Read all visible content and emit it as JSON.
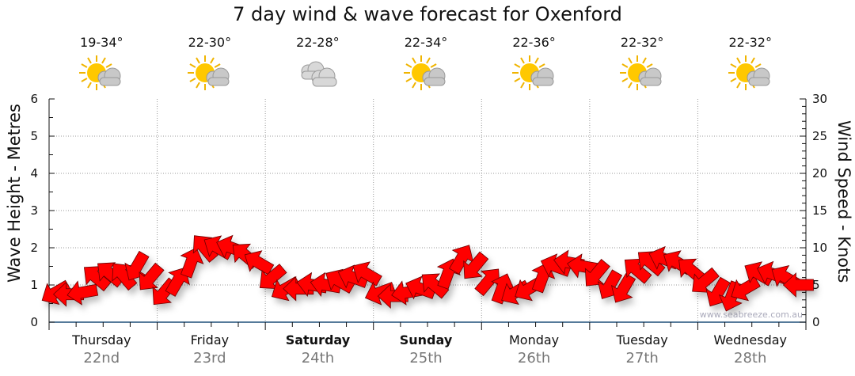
{
  "chart_data": {
    "type": "scatter",
    "title": "7 day wind & wave forecast for Oxenford",
    "ylabel": "Wave Height - Metres",
    "y2label": "Wind Speed - Knots",
    "ylim": [
      0,
      6
    ],
    "y2lim": [
      0,
      30
    ],
    "yticks": [
      "0",
      "1",
      "2",
      "3",
      "4",
      "5",
      "6"
    ],
    "y2ticks": [
      "0",
      "5",
      "10",
      "15",
      "20",
      "25",
      "30"
    ],
    "watermark": "www.seabreeze.com.au",
    "days": [
      {
        "name": "Thursday",
        "date": "22nd",
        "temp": "19-34°",
        "icon": "sun-cloud",
        "bold": false
      },
      {
        "name": "Friday",
        "date": "23rd",
        "temp": "22-30°",
        "icon": "sun-cloud",
        "bold": false
      },
      {
        "name": "Saturday",
        "date": "24th",
        "temp": "22-28°",
        "icon": "cloud",
        "bold": true
      },
      {
        "name": "Sunday",
        "date": "25th",
        "temp": "22-34°",
        "icon": "sun-cloud",
        "bold": true
      },
      {
        "name": "Monday",
        "date": "26th",
        "temp": "22-36°",
        "icon": "sun-cloud",
        "bold": false
      },
      {
        "name": "Tuesday",
        "date": "27th",
        "temp": "22-32°",
        "icon": "sun-cloud",
        "bold": false
      },
      {
        "name": "Wednesday",
        "date": "28th",
        "temp": "22-32°",
        "icon": "sun-cloud",
        "bold": false
      }
    ],
    "wave_height_m": [
      0.8,
      0.75,
      0.8,
      1.2,
      1.3,
      1.25,
      1.5,
      1.2,
      0.8,
      1.1,
      1.6,
      2.0,
      2.0,
      2.0,
      1.8,
      1.6,
      1.2,
      0.9,
      0.9,
      1.0,
      1.0,
      1.1,
      1.2,
      1.3,
      0.8,
      0.7,
      0.8,
      0.9,
      1.0,
      1.3,
      1.7,
      1.5,
      1.1,
      0.9,
      0.8,
      0.9,
      1.2,
      1.5,
      1.6,
      1.5,
      1.3,
      1.0,
      0.9,
      1.4,
      1.6,
      1.7,
      1.6,
      1.4,
      1.1,
      0.8,
      0.7,
      0.9,
      1.3,
      1.3,
      1.2,
      1.0
    ],
    "wind_from_deg": [
      60,
      90,
      80,
      130,
      130,
      140,
      30,
      40,
      40,
      210,
      200,
      140,
      120,
      110,
      130,
      120,
      50,
      60,
      90,
      100,
      100,
      120,
      110,
      120,
      70,
      90,
      80,
      110,
      130,
      200,
      210,
      40,
      220,
      200,
      60,
      60,
      200,
      110,
      100,
      100,
      40,
      30,
      30,
      130,
      130,
      110,
      120,
      130,
      50,
      30,
      20,
      60,
      120,
      110,
      120,
      90
    ],
    "colors": {
      "arrow": "#ff0000",
      "arrow_stroke": "#6a0000",
      "axis": "#1f4e79",
      "grid": "#999999"
    }
  }
}
